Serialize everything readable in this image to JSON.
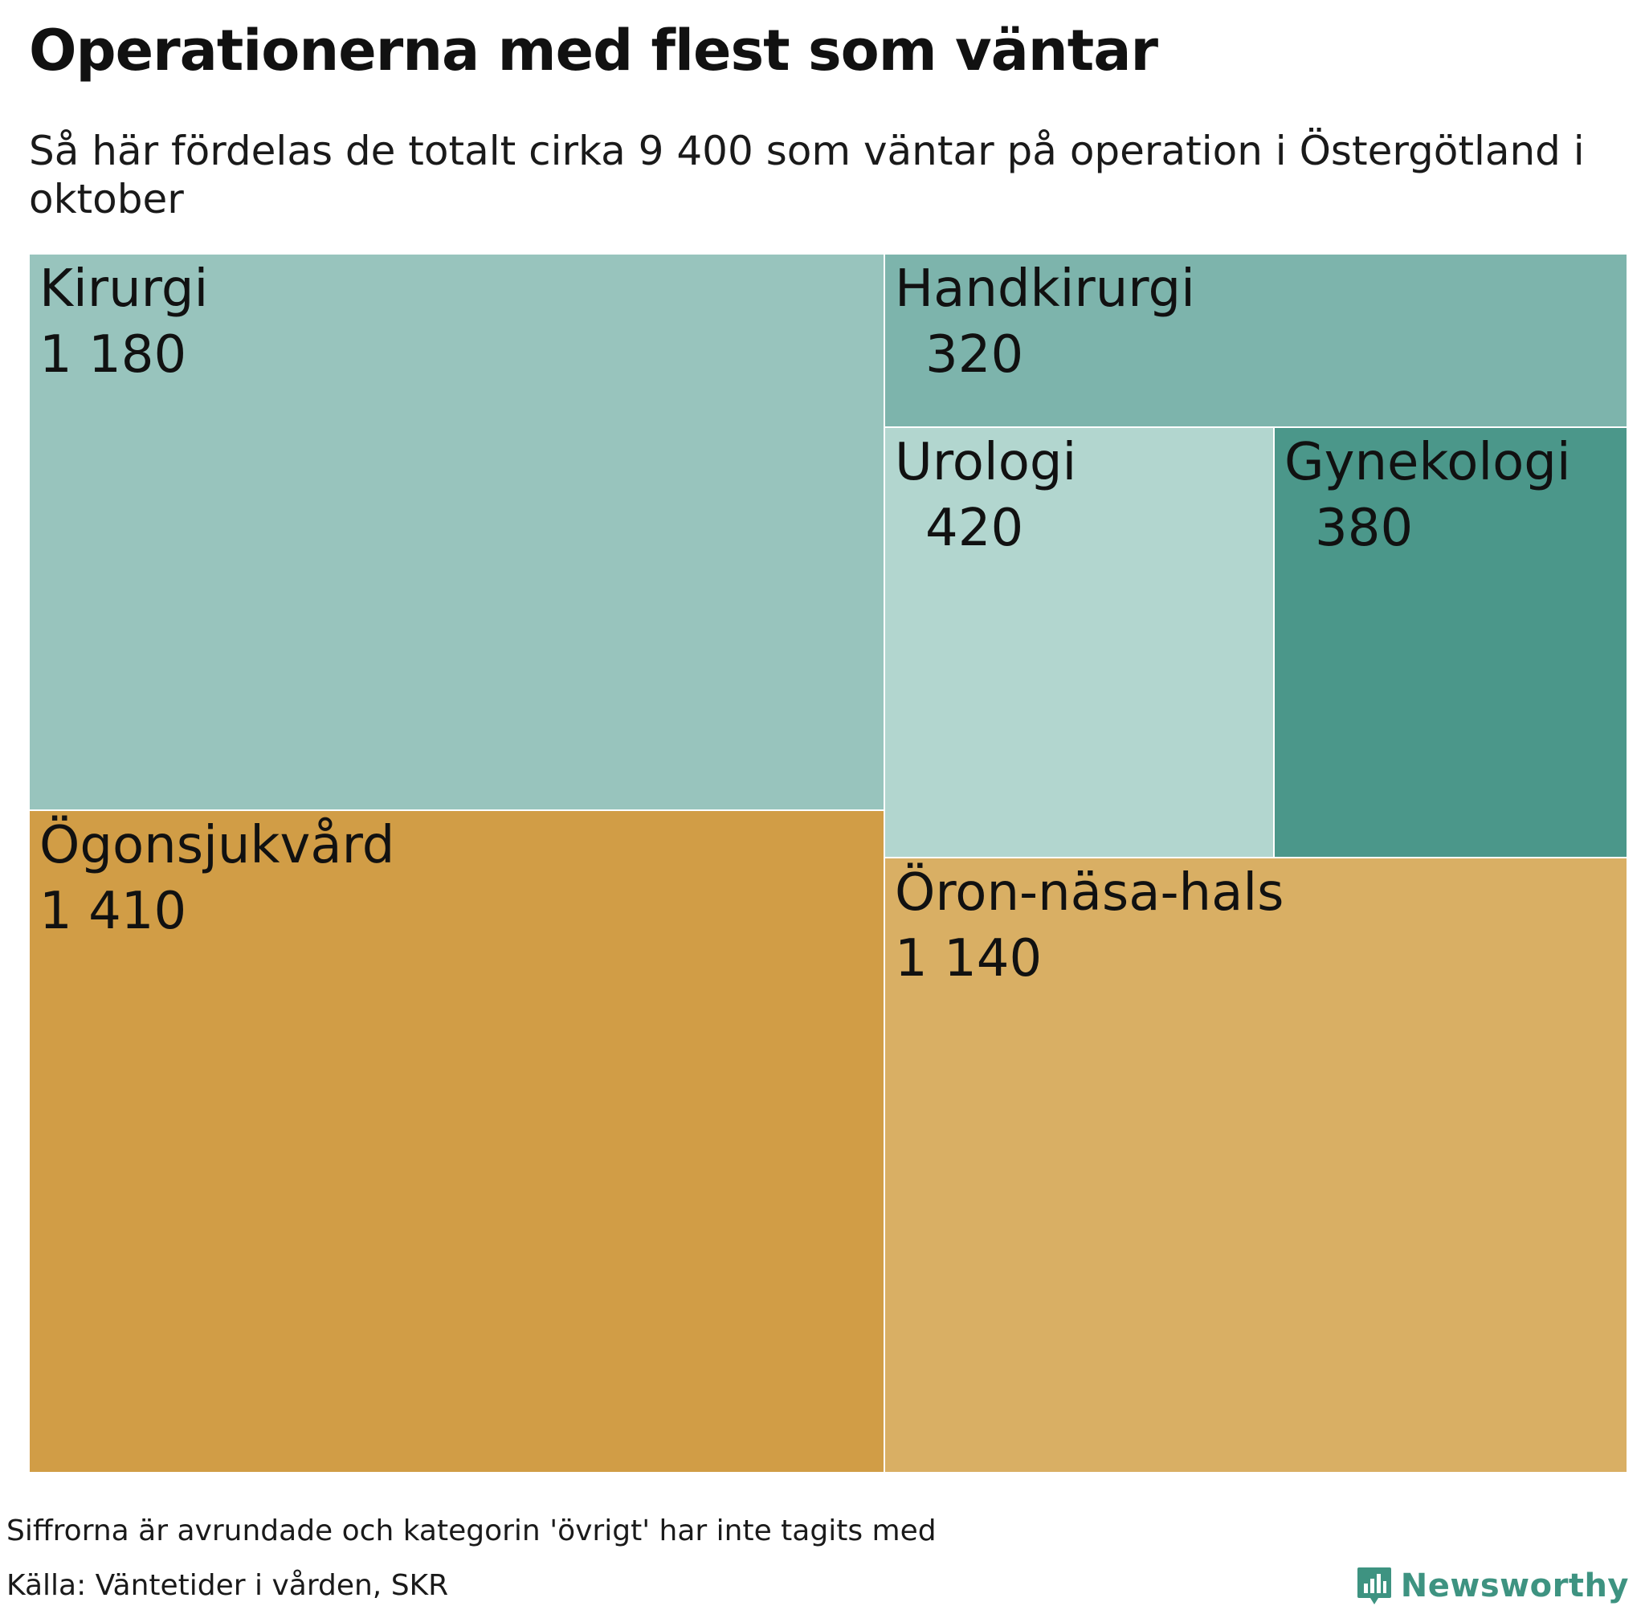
{
  "header": {
    "title": "Operationerna med flest som väntar",
    "subtitle": "Så här fördelas de totalt cirka 9 400 som väntar på operation i Östergötland i oktober"
  },
  "chart_data": {
    "type": "treemap",
    "title": "Operationerna med flest som väntar",
    "subtitle": "Så här fördelas de totalt cirka 9 400 som väntar på operation i Östergötland i oktober",
    "items": [
      {
        "name": "Kirurgi",
        "value": 1180,
        "label": "1 180",
        "color": "#98c4bd"
      },
      {
        "name": "Ögonsjukvård",
        "value": 1410,
        "label": "1 410",
        "color": "#d19d46"
      },
      {
        "name": "Handkirurgi",
        "value": 320,
        "label": "320",
        "color": "#7db4ac"
      },
      {
        "name": "Urologi",
        "value": 420,
        "label": "420",
        "color": "#b2d6cf"
      },
      {
        "name": "Gynekologi",
        "value": 380,
        "label": "380",
        "color": "#4b978a"
      },
      {
        "name": "Öron-näsa-hals",
        "value": 1140,
        "label": "1 140",
        "color": "#d9af64"
      }
    ]
  },
  "footer": {
    "note": "Siffrorna är avrundade och kategorin 'övrigt' har inte tagits med",
    "source": "Källa: Väntetider i vården, SKR",
    "brand": "Newsworthy",
    "brand_color": "#3e9381",
    "brand_icon": "bar-chart-bubble-icon"
  }
}
